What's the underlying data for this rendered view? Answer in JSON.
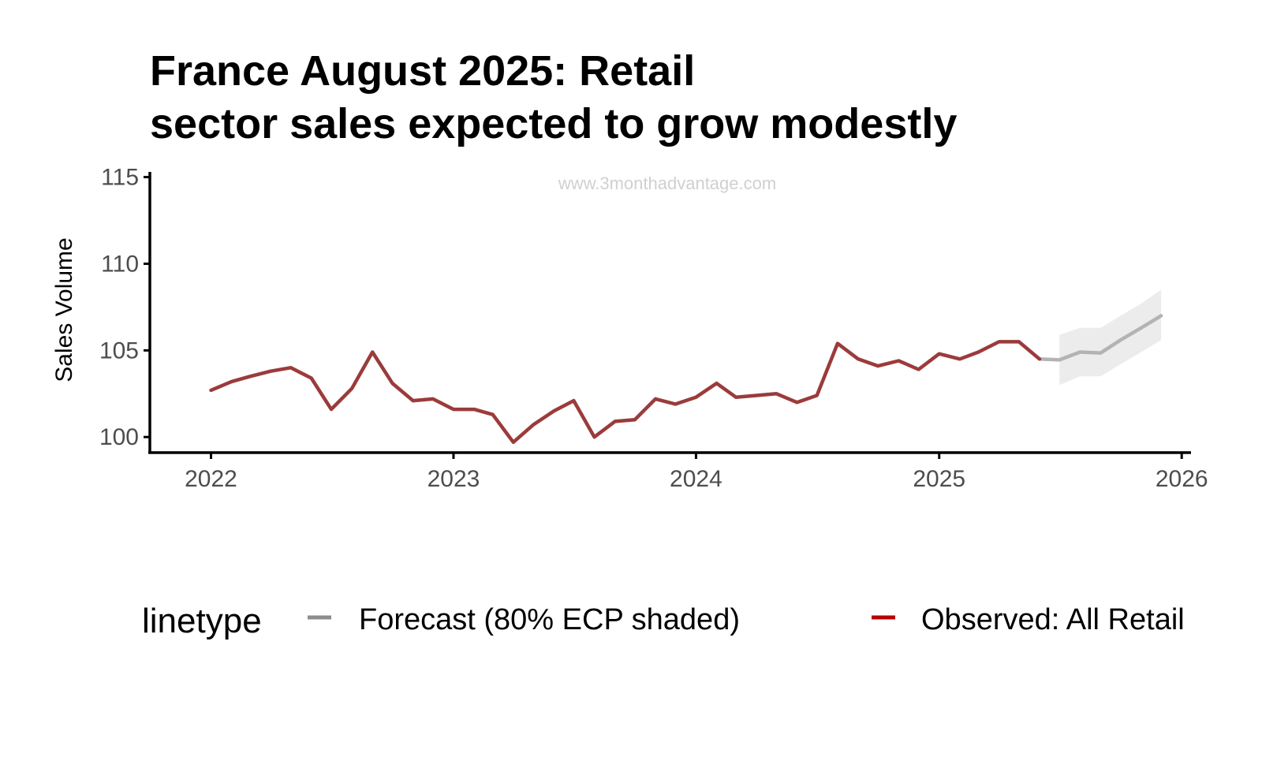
{
  "chart_data": {
    "type": "line",
    "title_lines": [
      "France August 2025: Retail",
      "sector sales expected to grow modestly"
    ],
    "xlabel": "",
    "ylabel": "Sales Volume",
    "watermark": "www.3monthadvantage.com",
    "xlim": [
      "2021-10-01",
      "2026-01-15"
    ],
    "ylim": [
      99.1,
      115.3
    ],
    "x_ticks": [
      "2022-01-01",
      "2023-01-01",
      "2024-01-01",
      "2025-01-01",
      "2026-01-01"
    ],
    "x_tick_labels": [
      "2022",
      "2023",
      "2024",
      "2025",
      "2026"
    ],
    "y_ticks": [
      100,
      105,
      110,
      115
    ],
    "y_tick_labels": [
      "100",
      "105",
      "110",
      "115"
    ],
    "grid": false,
    "legend": {
      "title": "linetype",
      "placement": "bottom",
      "entries": [
        "Forecast (80% ECP shaded)",
        "Observed: All Retail"
      ]
    },
    "series": [
      {
        "name": "Observed: All Retail",
        "color": "#9b3b3b",
        "x": [
          "2022-01-01",
          "2022-02-01",
          "2022-03-01",
          "2022-04-01",
          "2022-05-01",
          "2022-06-01",
          "2022-07-01",
          "2022-08-01",
          "2022-09-01",
          "2022-10-01",
          "2022-11-01",
          "2022-12-01",
          "2023-01-01",
          "2023-02-01",
          "2023-03-01",
          "2023-04-01",
          "2023-05-01",
          "2023-06-01",
          "2023-07-01",
          "2023-08-01",
          "2023-09-01",
          "2023-10-01",
          "2023-11-01",
          "2023-12-01",
          "2024-01-01",
          "2024-02-01",
          "2024-03-01",
          "2024-04-01",
          "2024-05-01",
          "2024-06-01",
          "2024-07-01",
          "2024-08-01",
          "2024-09-01",
          "2024-10-01",
          "2024-11-01",
          "2024-12-01",
          "2025-01-01",
          "2025-02-01",
          "2025-03-01",
          "2025-04-01",
          "2025-05-01",
          "2025-06-01"
        ],
        "values": [
          102.7,
          103.2,
          103.5,
          103.8,
          104.0,
          103.4,
          101.6,
          102.8,
          104.9,
          103.1,
          102.1,
          102.2,
          101.6,
          101.6,
          101.3,
          99.7,
          100.7,
          101.5,
          102.1,
          100.0,
          100.9,
          101.0,
          102.2,
          101.9,
          102.3,
          103.1,
          102.3,
          102.4,
          102.5,
          102.0,
          102.4,
          105.4,
          104.5,
          104.1,
          104.4,
          103.9,
          104.8,
          104.5,
          104.9,
          105.5,
          105.5,
          104.5
        ]
      },
      {
        "name": "Forecast (80% ECP shaded)",
        "color": "#b3b3b3",
        "x": [
          "2025-06-01",
          "2025-07-01",
          "2025-08-01",
          "2025-09-01",
          "2025-10-01",
          "2025-11-01",
          "2025-12-01"
        ],
        "values": [
          104.5,
          104.45,
          104.9,
          104.85,
          105.6,
          106.3,
          107.0
        ],
        "lower": [
          null,
          103.0,
          103.5,
          103.5,
          104.2,
          104.9,
          105.6
        ],
        "upper": [
          null,
          105.9,
          106.3,
          106.3,
          107.0,
          107.7,
          108.5
        ]
      }
    ]
  }
}
